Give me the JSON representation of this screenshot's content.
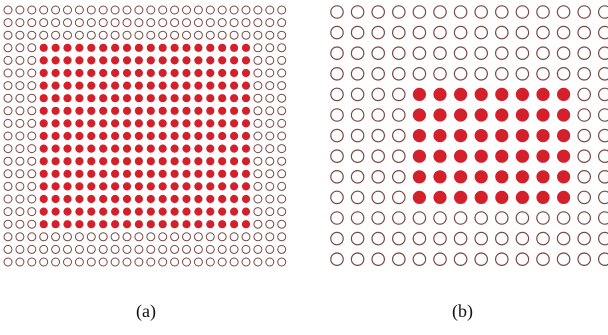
{
  "figure": {
    "panels": [
      {
        "id": "a",
        "caption": "(a)",
        "grid_rows": 21,
        "grid_cols": 24,
        "filled_rows": [
          3,
          17
        ],
        "filled_cols": [
          3,
          20
        ],
        "filled_color": "#d4202a",
        "empty_color": "#7a4a44"
      },
      {
        "id": "b",
        "caption": "(b)",
        "grid_rows": 13,
        "grid_cols": 14,
        "filled_rows": [
          4,
          9
        ],
        "filled_cols": [
          4,
          11
        ],
        "filled_color": "#d4202a",
        "empty_color": "#7a4a44"
      }
    ]
  }
}
